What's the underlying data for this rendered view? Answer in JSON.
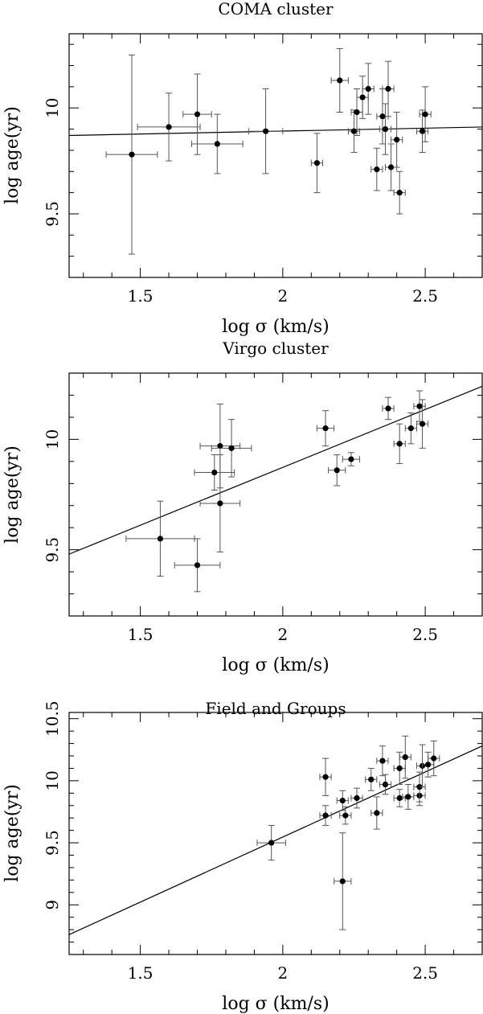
{
  "chart_data": [
    {
      "type": "scatter",
      "title": "COMA cluster",
      "xlabel": "log σ (km/s)",
      "ylabel": "log age(yr)",
      "xlim": [
        1.25,
        2.7
      ],
      "ylim": [
        9.2,
        10.35
      ],
      "xticks": [
        1.5,
        2,
        2.5
      ],
      "xtick_labels": [
        "1.5",
        "2",
        "2.5"
      ],
      "yticks": [
        9.5,
        10
      ],
      "ytick_labels": [
        "9.5",
        "10"
      ],
      "fit_line": {
        "x": [
          1.25,
          2.7
        ],
        "y": [
          9.87,
          9.91
        ]
      },
      "points": [
        {
          "x": 1.47,
          "y": 9.78,
          "xerr": 0.09,
          "yerr": 0.47
        },
        {
          "x": 1.6,
          "y": 9.91,
          "xerr": 0.11,
          "yerr": 0.16
        },
        {
          "x": 1.7,
          "y": 9.97,
          "xerr": 0.05,
          "yerr": 0.19
        },
        {
          "x": 1.77,
          "y": 9.83,
          "xerr": 0.09,
          "yerr": 0.14
        },
        {
          "x": 1.94,
          "y": 9.89,
          "xerr": 0.06,
          "yerr": 0.2
        },
        {
          "x": 2.12,
          "y": 9.74,
          "xerr": 0.02,
          "yerr": 0.14
        },
        {
          "x": 2.2,
          "y": 10.13,
          "xerr": 0.03,
          "yerr": 0.15
        },
        {
          "x": 2.25,
          "y": 9.89,
          "xerr": 0.02,
          "yerr": 0.1
        },
        {
          "x": 2.26,
          "y": 9.98,
          "xerr": 0.02,
          "yerr": 0.11
        },
        {
          "x": 2.28,
          "y": 10.05,
          "xerr": 0.02,
          "yerr": 0.1
        },
        {
          "x": 2.3,
          "y": 10.09,
          "xerr": 0.02,
          "yerr": 0.12
        },
        {
          "x": 2.33,
          "y": 9.71,
          "xerr": 0.02,
          "yerr": 0.1
        },
        {
          "x": 2.35,
          "y": 9.96,
          "xerr": 0.02,
          "yerr": 0.13
        },
        {
          "x": 2.36,
          "y": 9.9,
          "xerr": 0.02,
          "yerr": 0.12
        },
        {
          "x": 2.37,
          "y": 10.09,
          "xerr": 0.02,
          "yerr": 0.13
        },
        {
          "x": 2.38,
          "y": 9.72,
          "xerr": 0.02,
          "yerr": 0.11
        },
        {
          "x": 2.4,
          "y": 9.85,
          "xerr": 0.02,
          "yerr": 0.13
        },
        {
          "x": 2.41,
          "y": 9.6,
          "xerr": 0.02,
          "yerr": 0.1
        },
        {
          "x": 2.49,
          "y": 9.89,
          "xerr": 0.02,
          "yerr": 0.1
        },
        {
          "x": 2.5,
          "y": 9.97,
          "xerr": 0.02,
          "yerr": 0.13
        }
      ]
    },
    {
      "type": "scatter",
      "title": "Virgo cluster",
      "xlabel": "log σ (km/s)",
      "ylabel": "log age(yr)",
      "xlim": [
        1.25,
        2.7
      ],
      "ylim": [
        9.2,
        10.3
      ],
      "xticks": [
        1.5,
        2,
        2.5
      ],
      "xtick_labels": [
        "1.5",
        "2",
        "2.5"
      ],
      "yticks": [
        9.5,
        10
      ],
      "ytick_labels": [
        "9.5",
        "10"
      ],
      "fit_line": {
        "x": [
          1.25,
          2.7
        ],
        "y": [
          9.48,
          10.24
        ]
      },
      "points": [
        {
          "x": 1.57,
          "y": 9.55,
          "xerr": 0.12,
          "yerr": 0.17
        },
        {
          "x": 1.7,
          "y": 9.43,
          "xerr": 0.08,
          "yerr": 0.12
        },
        {
          "x": 1.76,
          "y": 9.85,
          "xerr": 0.07,
          "yerr": 0.08
        },
        {
          "x": 1.78,
          "y": 9.97,
          "xerr": 0.07,
          "yerr": 0.19
        },
        {
          "x": 1.78,
          "y": 9.71,
          "xerr": 0.07,
          "yerr": 0.22
        },
        {
          "x": 1.82,
          "y": 9.96,
          "xerr": 0.07,
          "yerr": 0.13
        },
        {
          "x": 2.15,
          "y": 10.05,
          "xerr": 0.03,
          "yerr": 0.08
        },
        {
          "x": 2.19,
          "y": 9.86,
          "xerr": 0.03,
          "yerr": 0.07
        },
        {
          "x": 2.24,
          "y": 9.91,
          "xerr": 0.03,
          "yerr": 0.03
        },
        {
          "x": 2.37,
          "y": 10.14,
          "xerr": 0.02,
          "yerr": 0.05
        },
        {
          "x": 2.41,
          "y": 9.98,
          "xerr": 0.02,
          "yerr": 0.09
        },
        {
          "x": 2.45,
          "y": 10.05,
          "xerr": 0.02,
          "yerr": 0.07
        },
        {
          "x": 2.48,
          "y": 10.15,
          "xerr": 0.02,
          "yerr": 0.07
        },
        {
          "x": 2.49,
          "y": 10.07,
          "xerr": 0.02,
          "yerr": 0.11
        }
      ]
    },
    {
      "type": "scatter",
      "title": "Field and Groups",
      "xlabel": "log σ (km/s)",
      "ylabel": "log age(yr)",
      "xlim": [
        1.25,
        2.7
      ],
      "ylim": [
        8.6,
        10.55
      ],
      "xticks": [
        1.5,
        2,
        2.5
      ],
      "xtick_labels": [
        "1.5",
        "2",
        "2.5"
      ],
      "yticks": [
        9,
        9.5,
        10,
        10.5
      ],
      "ytick_labels": [
        "9",
        "9.5",
        "10",
        "10.5"
      ],
      "fit_line": {
        "x": [
          1.25,
          2.7
        ],
        "y": [
          8.76,
          10.28
        ]
      },
      "points": [
        {
          "x": 1.96,
          "y": 9.5,
          "xerr": 0.05,
          "yerr": 0.14
        },
        {
          "x": 2.15,
          "y": 10.03,
          "xerr": 0.02,
          "yerr": 0.15
        },
        {
          "x": 2.15,
          "y": 9.72,
          "xerr": 0.02,
          "yerr": 0.08
        },
        {
          "x": 2.21,
          "y": 9.84,
          "xerr": 0.02,
          "yerr": 0.08
        },
        {
          "x": 2.21,
          "y": 9.19,
          "xerr": 0.03,
          "yerr": 0.39
        },
        {
          "x": 2.22,
          "y": 9.72,
          "xerr": 0.02,
          "yerr": 0.07
        },
        {
          "x": 2.26,
          "y": 9.86,
          "xerr": 0.02,
          "yerr": 0.08
        },
        {
          "x": 2.31,
          "y": 10.01,
          "xerr": 0.02,
          "yerr": 0.09
        },
        {
          "x": 2.33,
          "y": 9.74,
          "xerr": 0.02,
          "yerr": 0.13
        },
        {
          "x": 2.35,
          "y": 10.16,
          "xerr": 0.02,
          "yerr": 0.12
        },
        {
          "x": 2.36,
          "y": 9.97,
          "xerr": 0.02,
          "yerr": 0.08
        },
        {
          "x": 2.41,
          "y": 9.86,
          "xerr": 0.02,
          "yerr": 0.07
        },
        {
          "x": 2.41,
          "y": 10.1,
          "xerr": 0.02,
          "yerr": 0.13
        },
        {
          "x": 2.43,
          "y": 10.19,
          "xerr": 0.02,
          "yerr": 0.17
        },
        {
          "x": 2.44,
          "y": 9.87,
          "xerr": 0.02,
          "yerr": 0.1
        },
        {
          "x": 2.48,
          "y": 9.88,
          "xerr": 0.02,
          "yerr": 0.08
        },
        {
          "x": 2.48,
          "y": 9.95,
          "xerr": 0.02,
          "yerr": 0.12
        },
        {
          "x": 2.49,
          "y": 10.12,
          "xerr": 0.02,
          "yerr": 0.17
        },
        {
          "x": 2.51,
          "y": 10.13,
          "xerr": 0.02,
          "yerr": 0.1
        },
        {
          "x": 2.53,
          "y": 10.18,
          "xerr": 0.02,
          "yerr": 0.14
        }
      ]
    }
  ]
}
